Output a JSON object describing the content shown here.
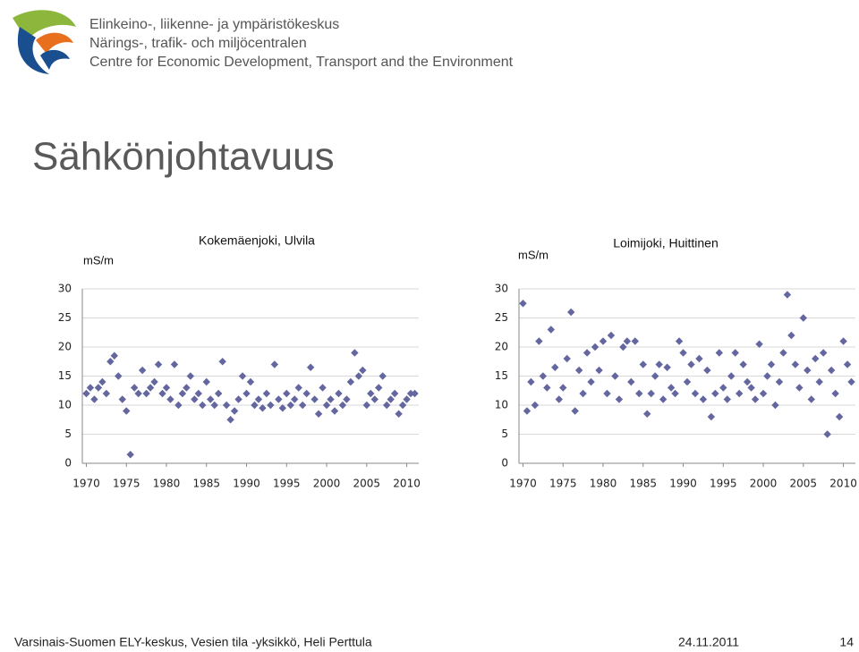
{
  "header": {
    "lines": [
      "Elinkeino-, liikenne- ja ympäristökeskus",
      "Närings-, trafik- och miljöcentralen",
      "Centre for Economic Development, Transport and the Environment"
    ]
  },
  "title": "Sähkönjohtavuus",
  "chart_data": [
    {
      "type": "scatter",
      "title": "Kokemäenjoki, Ulvila",
      "y_label": "mS/m",
      "color": "#6466a0",
      "xlim": [
        1969.5,
        2011.5
      ],
      "xticks": [
        1970,
        1975,
        1980,
        1985,
        1990,
        1995,
        2000,
        2005,
        2010
      ],
      "ylim": [
        0,
        30
      ],
      "yticks": [
        0,
        5,
        10,
        15,
        20,
        25,
        30
      ],
      "grid": true,
      "x": [
        1970,
        1970.5,
        1971,
        1971.5,
        1972,
        1972.5,
        1973,
        1973.5,
        1974,
        1974.5,
        1975,
        1975.5,
        1976,
        1976.5,
        1977,
        1977.5,
        1978,
        1978.5,
        1979,
        1979.5,
        1980,
        1980.5,
        1981,
        1981.5,
        1982,
        1982.5,
        1983,
        1983.5,
        1984,
        1984.5,
        1985,
        1985.5,
        1986,
        1986.5,
        1987,
        1987.5,
        1988,
        1988.5,
        1989,
        1989.5,
        1990,
        1990.5,
        1991,
        1991.5,
        1992,
        1992.5,
        1993,
        1993.5,
        1994,
        1994.5,
        1995,
        1995.5,
        1996,
        1996.5,
        1997,
        1997.5,
        1998,
        1998.5,
        1999,
        1999.5,
        2000,
        2000.5,
        2001,
        2001.5,
        2002,
        2002.5,
        2003,
        2003.5,
        2004,
        2004.5,
        2005,
        2005.5,
        2006,
        2006.5,
        2007,
        2007.5,
        2008,
        2008.5,
        2009,
        2009.5,
        2010,
        2010.5,
        2011
      ],
      "values": [
        12,
        13,
        11,
        13,
        14,
        12,
        17.5,
        18.5,
        15,
        11,
        9,
        1.5,
        13,
        12,
        16,
        12,
        13,
        14,
        17,
        12,
        13,
        11,
        17,
        10,
        12,
        13,
        15,
        11,
        12,
        10,
        14,
        11,
        10,
        12,
        17.5,
        10,
        7.5,
        9,
        11,
        15,
        12,
        14,
        10,
        11,
        9.5,
        12,
        10,
        17,
        11,
        9.5,
        12,
        10,
        11,
        13,
        10,
        12,
        16.5,
        11,
        8.5,
        13,
        10,
        11,
        9,
        12,
        10,
        11,
        14,
        19,
        15,
        16,
        10,
        12,
        11,
        13,
        15,
        10,
        11,
        12,
        8.5,
        10,
        11,
        12,
        12
      ]
    },
    {
      "type": "scatter",
      "title": "Loimijoki, Huittinen",
      "y_label": "mS/m",
      "color": "#6466a0",
      "xlim": [
        1969.5,
        2011.5
      ],
      "xticks": [
        1970,
        1975,
        1980,
        1985,
        1990,
        1995,
        2000,
        2005,
        2010
      ],
      "ylim": [
        0,
        30
      ],
      "yticks": [
        0,
        5,
        10,
        15,
        20,
        25,
        30
      ],
      "grid": true,
      "x": [
        1970,
        1970.5,
        1971,
        1971.5,
        1972,
        1972.5,
        1973,
        1973.5,
        1974,
        1974.5,
        1975,
        1975.5,
        1976,
        1976.5,
        1977,
        1977.5,
        1978,
        1978.5,
        1979,
        1979.5,
        1980,
        1980.5,
        1981,
        1981.5,
        1982,
        1982.5,
        1983,
        1983.5,
        1984,
        1984.5,
        1985,
        1985.5,
        1986,
        1986.5,
        1987,
        1987.5,
        1988,
        1988.5,
        1989,
        1989.5,
        1990,
        1990.5,
        1991,
        1991.5,
        1992,
        1992.5,
        1993,
        1993.5,
        1994,
        1994.5,
        1995,
        1995.5,
        1996,
        1996.5,
        1997,
        1997.5,
        1998,
        1998.5,
        1999,
        1999.5,
        2000,
        2000.5,
        2001,
        2001.5,
        2002,
        2002.5,
        2003,
        2003.5,
        2004,
        2004.5,
        2005,
        2005.5,
        2006,
        2006.5,
        2007,
        2007.5,
        2008,
        2008.5,
        2009,
        2009.5,
        2010,
        2010.5,
        2011
      ],
      "values": [
        27.5,
        9,
        14,
        10,
        21,
        15,
        13,
        23,
        16.5,
        11,
        13,
        18,
        26,
        9,
        16,
        12,
        19,
        14,
        20,
        16,
        21,
        12,
        22,
        15,
        11,
        20,
        21,
        14,
        21,
        12,
        17,
        8.5,
        12,
        15,
        17,
        11,
        16.5,
        13,
        12,
        21,
        19,
        14,
        17,
        12,
        18,
        11,
        16,
        8,
        12,
        19,
        13,
        11,
        15,
        19,
        12,
        17,
        14,
        13,
        11,
        20.5,
        12,
        15,
        17,
        10,
        14,
        19,
        29,
        22,
        17,
        13,
        25,
        16,
        11,
        18,
        14,
        19,
        5,
        16,
        12,
        8,
        21,
        17,
        14
      ]
    }
  ],
  "footer": {
    "left": "Varsinais-Suomen ELY-keskus, Vesien  tila -yksikkö, Heli Perttula",
    "date": "24.11.2011",
    "page": "14"
  }
}
